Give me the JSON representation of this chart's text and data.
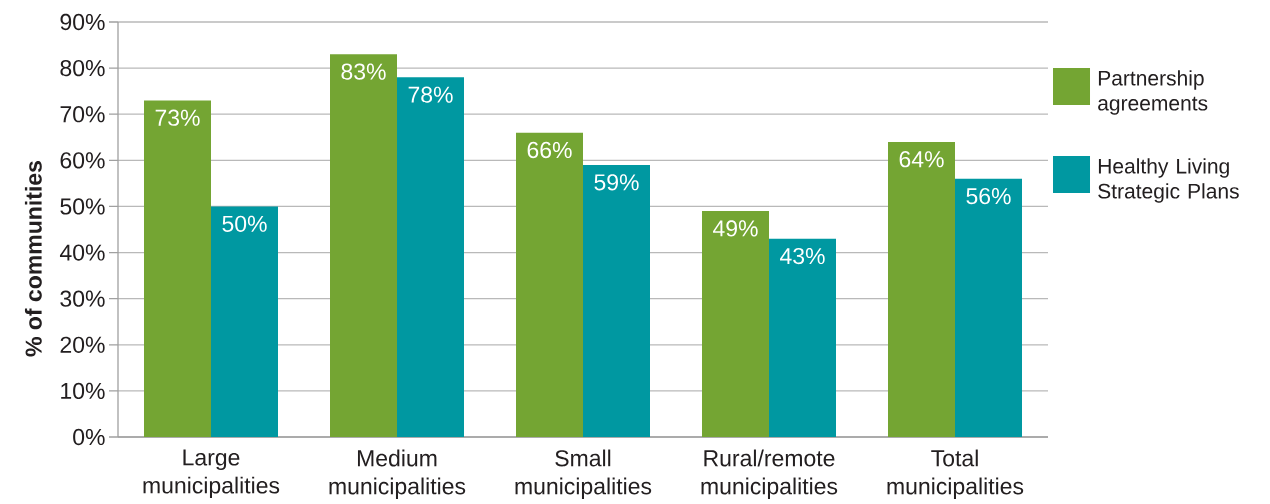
{
  "chart_data": {
    "type": "bar",
    "categories": [
      "Large municipalities",
      "Medium municipalities",
      "Small municipalities",
      "Rural/remote municipalities",
      "Total municipalities"
    ],
    "series": [
      {
        "name": "Partnership agreements",
        "color": "#74a533",
        "values": [
          73,
          83,
          66,
          49,
          64
        ],
        "value_labels": [
          "73%",
          "83%",
          "66%",
          "49%",
          "64%"
        ]
      },
      {
        "name": "Healthy Living Strategic Plans",
        "color": "#0098a1",
        "values": [
          50,
          78,
          59,
          43,
          56
        ],
        "value_labels": [
          "50%",
          "78%",
          "59%",
          "43%",
          "56%"
        ]
      }
    ],
    "ylabel": "% of communities",
    "ylim": [
      0,
      90
    ],
    "yticks": [
      {
        "value": 0,
        "label": "0%"
      },
      {
        "value": 10,
        "label": "10%"
      },
      {
        "value": 20,
        "label": "20%"
      },
      {
        "value": 30,
        "label": "30%"
      },
      {
        "value": 40,
        "label": "40%"
      },
      {
        "value": 50,
        "label": "50%"
      },
      {
        "value": 60,
        "label": "60%"
      },
      {
        "value": 70,
        "label": "70%"
      },
      {
        "value": 80,
        "label": "80%"
      },
      {
        "value": 90,
        "label": "90%"
      }
    ],
    "grid": "y",
    "legend": "right"
  }
}
